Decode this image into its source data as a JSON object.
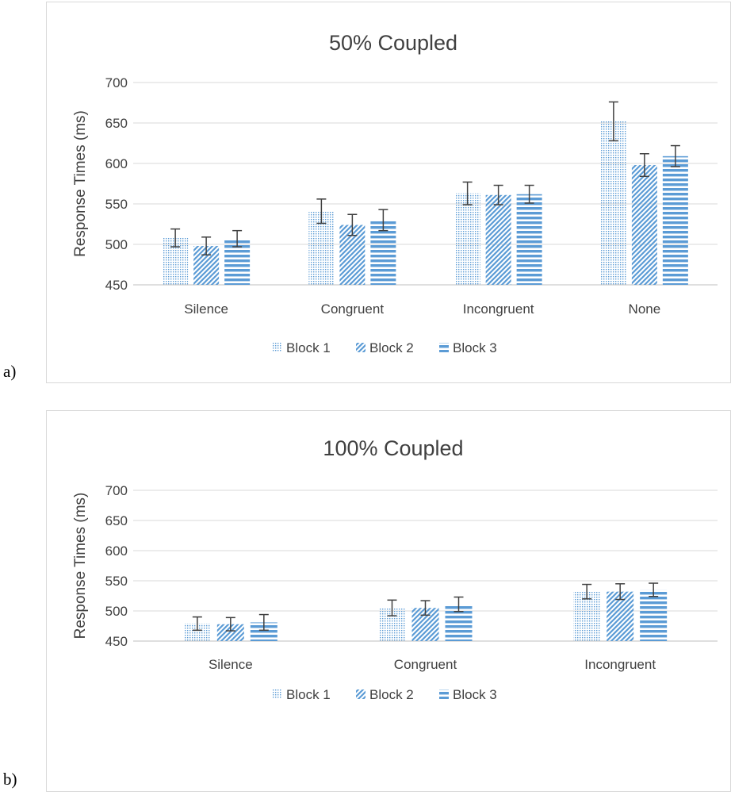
{
  "labels": {
    "panel_a": "a)",
    "panel_b": "b)"
  },
  "colors": {
    "bar": "#5b9bd5",
    "grid": "#d9d9d9",
    "error_bar": "#404040",
    "text": "#595959"
  },
  "chart_data": [
    {
      "type": "bar",
      "title": "50% Coupled",
      "xlabel": "",
      "ylabel": "Response Times (ms)",
      "ylim": [
        450,
        700
      ],
      "yticks": [
        450,
        500,
        550,
        600,
        650,
        700
      ],
      "grid": true,
      "legend_position": "bottom",
      "categories": [
        "Silence",
        "Congruent",
        "Incongruent",
        "None"
      ],
      "series": [
        {
          "name": "Block 1",
          "pattern": "dots",
          "values": [
            508,
            541,
            563,
            652
          ],
          "errors": [
            11,
            15,
            14,
            24
          ]
        },
        {
          "name": "Block 2",
          "pattern": "diagonal",
          "values": [
            498,
            524,
            561,
            598
          ],
          "errors": [
            11,
            13,
            12,
            14
          ]
        },
        {
          "name": "Block 3",
          "pattern": "horizontal",
          "values": [
            507,
            530,
            562,
            609
          ],
          "errors": [
            10,
            13,
            11,
            13
          ]
        }
      ]
    },
    {
      "type": "bar",
      "title": "100% Coupled",
      "xlabel": "",
      "ylabel": "Response Times (ms)",
      "ylim": [
        450,
        700
      ],
      "yticks": [
        450,
        500,
        550,
        600,
        650,
        700
      ],
      "grid": true,
      "legend_position": "bottom",
      "categories": [
        "Silence",
        "Congruent",
        "Incongruent"
      ],
      "series": [
        {
          "name": "Block 1",
          "pattern": "dots",
          "values": [
            479,
            505,
            532
          ],
          "errors": [
            11,
            13,
            12
          ]
        },
        {
          "name": "Block 2",
          "pattern": "diagonal",
          "values": [
            478,
            505,
            532
          ],
          "errors": [
            11,
            12,
            13
          ]
        },
        {
          "name": "Block 3",
          "pattern": "horizontal",
          "values": [
            481,
            511,
            535
          ],
          "errors": [
            13,
            12,
            11
          ]
        }
      ]
    }
  ]
}
